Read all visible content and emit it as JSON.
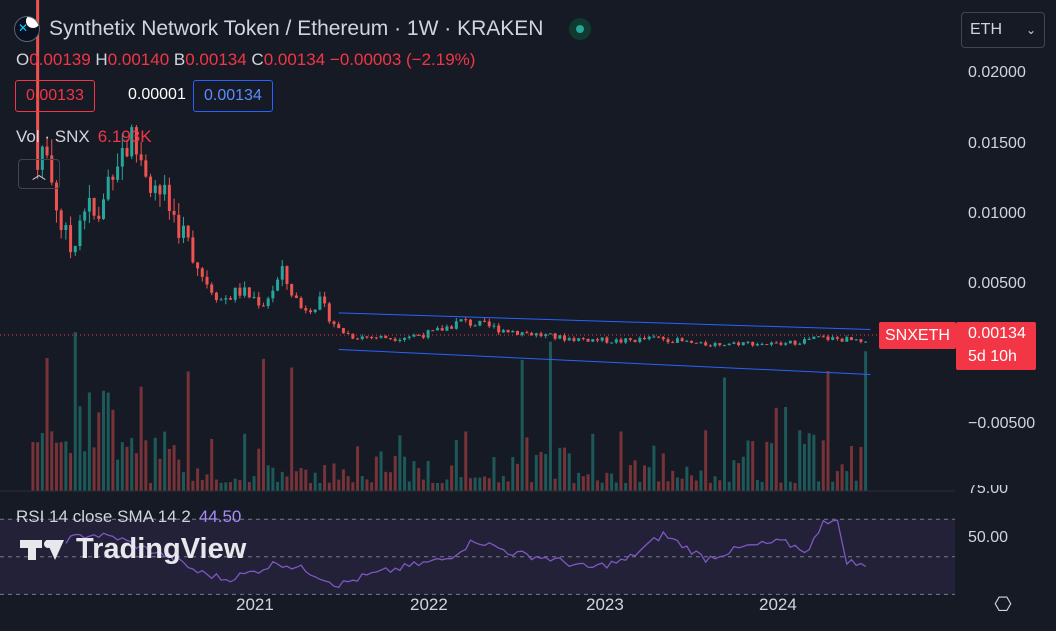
{
  "header": {
    "title": "Synthetix Network Token / Ethereum · 1W · KRAKEN",
    "ohlc": {
      "o_label": "O",
      "o": "0.00139",
      "h_label": "H",
      "h": "0.00140",
      "l_label": "B",
      "l": "0.00134",
      "c_label": "C",
      "c": "0.00134",
      "change": "−0.00003 (−2.19%)"
    },
    "sell_price": "0.00133",
    "spread": "0.00001",
    "buy_price": "0.00134",
    "volume_label": "Vol · SNX",
    "volume_value": "6.193K",
    "collapse_icon": "chevron-up-icon"
  },
  "currency_selector": {
    "value": "ETH"
  },
  "price_axis": {
    "ticks": [
      "0.02000",
      "0.01500",
      "0.01000",
      "0.00500",
      "−0.00500"
    ]
  },
  "rsi_axis": {
    "ticks": [
      "75.00",
      "50.00"
    ]
  },
  "time_axis": {
    "ticks": [
      "2021",
      "2022",
      "2023",
      "2024"
    ]
  },
  "price_marker": {
    "symbol": "SNXETH",
    "price": "0.00134",
    "countdown": "5d 10h"
  },
  "rsi": {
    "label": "RSI 14 close SMA 14 2",
    "value": "44.50"
  },
  "watermark": "TradingView",
  "colors": {
    "up": "#26a69a",
    "down": "#ef5350",
    "channel": "#2962ff",
    "rsi": "#7e57c2",
    "accent": "#f23645",
    "background": "#161a25"
  },
  "chart_data": {
    "type": "candlestick",
    "interval": "1W",
    "y_range": [
      -0.0075,
      0.022
    ],
    "x_range": [
      "2020-07-27",
      "2024-06-17"
    ],
    "anchors": [
      [
        "2020-09-14",
        0.025
      ],
      [
        "2020-09-21",
        0.013
      ],
      [
        "2020-10-05",
        0.0125
      ],
      [
        "2020-10-26",
        0.0085
      ],
      [
        "2020-11-09",
        0.007
      ],
      [
        "2020-11-30",
        0.0098
      ],
      [
        "2020-12-21",
        0.0085
      ],
      [
        "2021-01-11",
        0.0125
      ],
      [
        "2021-02-08",
        0.0135
      ],
      [
        "2021-03-01",
        0.012
      ],
      [
        "2021-03-29",
        0.01
      ],
      [
        "2021-04-26",
        0.008
      ],
      [
        "2021-05-24",
        0.0055
      ],
      [
        "2021-06-21",
        0.004
      ],
      [
        "2021-07-19",
        0.0045
      ],
      [
        "2021-08-23",
        0.0038
      ],
      [
        "2021-09-20",
        0.0055
      ],
      [
        "2021-10-18",
        0.0035
      ],
      [
        "2021-11-15",
        0.0038
      ],
      [
        "2021-12-13",
        0.0022
      ],
      [
        "2022-01-03",
        0.0018
      ],
      [
        "2022-03-07",
        0.0017
      ],
      [
        "2022-05-02",
        0.002
      ],
      [
        "2022-06-13",
        0.0027
      ],
      [
        "2022-08-15",
        0.0022
      ],
      [
        "2022-11-07",
        0.0017
      ],
      [
        "2023-02-06",
        0.0015
      ],
      [
        "2023-04-03",
        0.0017
      ],
      [
        "2023-06-05",
        0.0013
      ],
      [
        "2023-08-07",
        0.0014
      ],
      [
        "2023-10-02",
        0.0013
      ],
      [
        "2023-11-27",
        0.0017
      ],
      [
        "2024-01-08",
        0.0016
      ],
      [
        "2024-02-05",
        0.00134
      ]
    ],
    "volume": {
      "y_range": [
        0,
        500
      ]
    },
    "rsi": {
      "y_range": [
        35,
        85
      ],
      "bands": [
        70,
        50,
        30
      ],
      "anchors": [
        [
          "2020-11-02",
          59
        ],
        [
          "2020-12-07",
          62
        ],
        [
          "2021-01-18",
          60
        ],
        [
          "2021-02-22",
          55
        ],
        [
          "2021-04-05",
          50
        ],
        [
          "2021-05-17",
          42
        ],
        [
          "2021-06-28",
          38
        ],
        [
          "2021-08-09",
          42
        ],
        [
          "2021-09-13",
          47
        ],
        [
          "2021-10-25",
          43
        ],
        [
          "2021-12-13",
          35
        ],
        [
          "2022-01-24",
          40
        ],
        [
          "2022-03-28",
          45
        ],
        [
          "2022-05-23",
          49
        ],
        [
          "2022-07-04",
          59
        ],
        [
          "2022-08-29",
          52
        ],
        [
          "2022-10-24",
          49
        ],
        [
          "2022-12-19",
          44
        ],
        [
          "2023-02-13",
          48
        ],
        [
          "2023-04-10",
          62
        ],
        [
          "2023-06-12",
          49
        ],
        [
          "2023-08-07",
          55
        ],
        [
          "2023-10-02",
          58
        ],
        [
          "2023-11-13",
          53
        ],
        [
          "2023-12-04",
          70
        ],
        [
          "2023-12-25",
          68
        ],
        [
          "2024-01-08",
          48
        ],
        [
          "2024-02-05",
          44.5
        ]
      ]
    },
    "channel": {
      "upper": [
        [
          "2021-12-13",
          0.0032
        ],
        [
          "2024-02-12",
          0.0022
        ]
      ],
      "lower": [
        [
          "2021-12-13",
          0.001
        ],
        [
          "2024-02-12",
          -0.0005
        ]
      ]
    }
  }
}
